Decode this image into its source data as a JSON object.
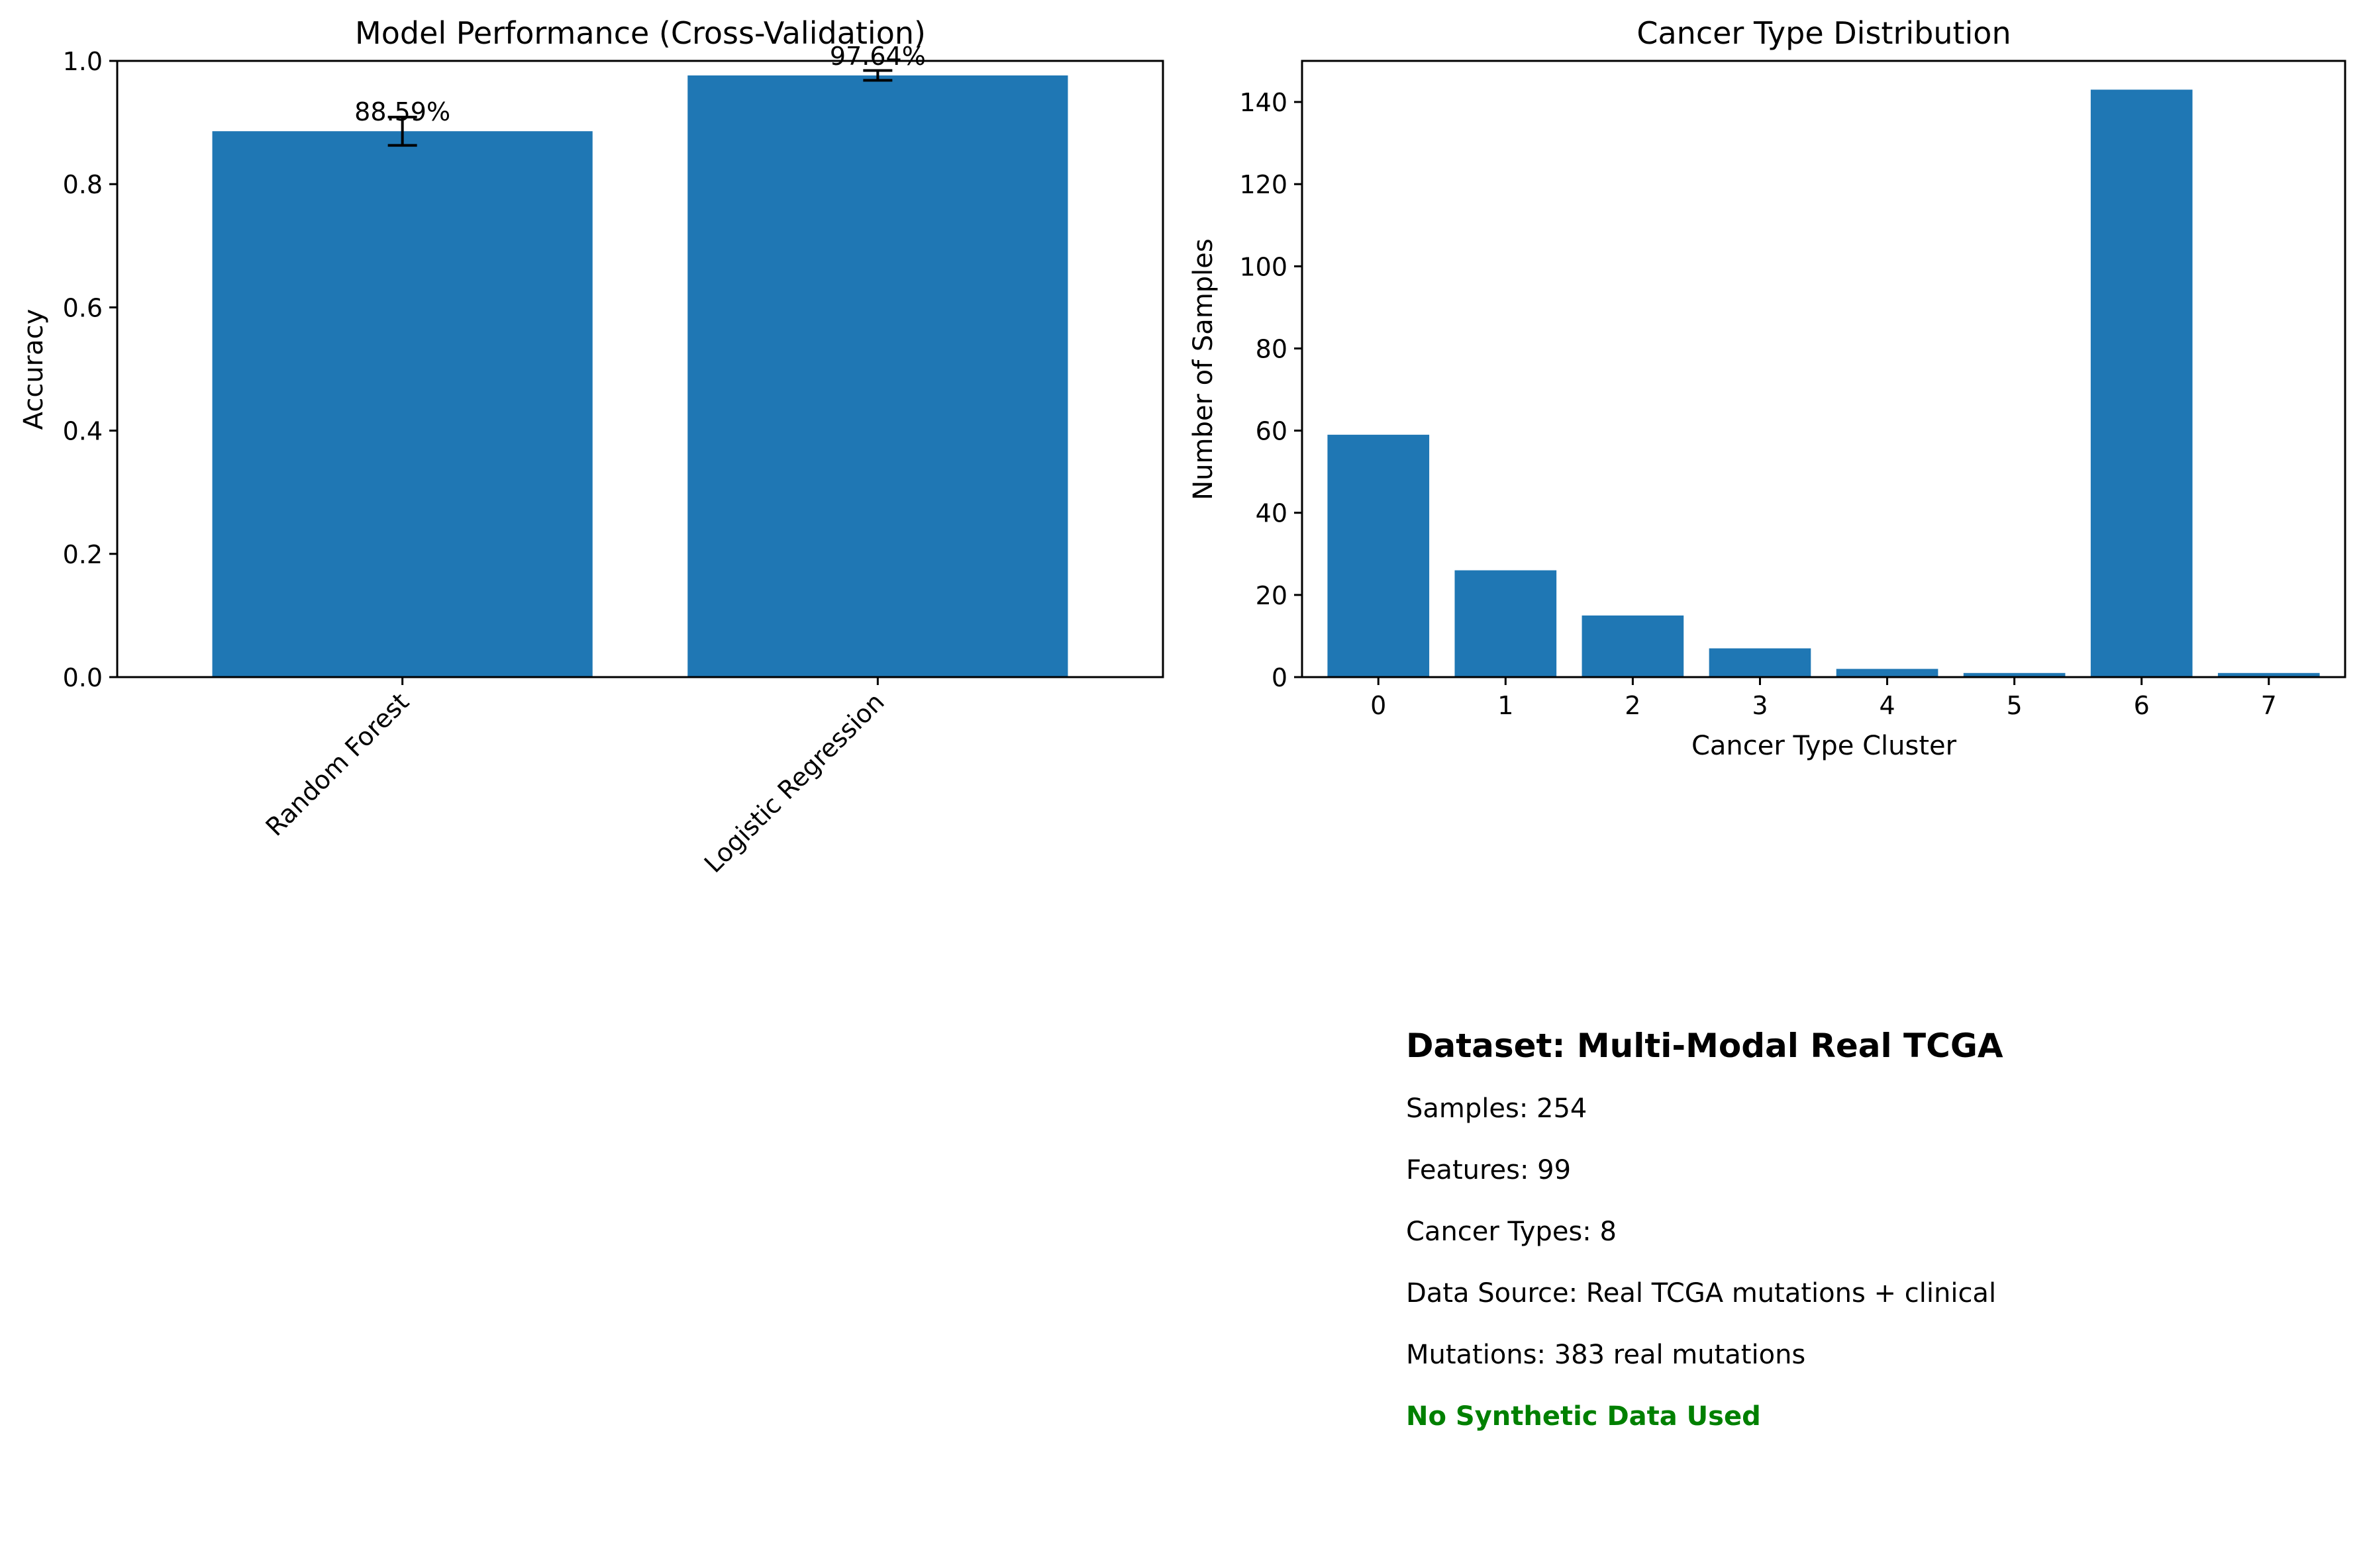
{
  "colors": {
    "bar": "#1f77b4",
    "axis": "#000000",
    "error_bar": "#000000",
    "highlight": "#008000",
    "background": "#ffffff"
  },
  "chart_data": [
    {
      "type": "bar",
      "title": "Model Performance (Cross-Validation)",
      "xlabel": "",
      "ylabel": "Accuracy",
      "categories": [
        "Random Forest",
        "Logistic Regression"
      ],
      "values": [
        0.8859,
        0.9764
      ],
      "errors": [
        0.023,
        0.008
      ],
      "data_labels": [
        "88.59%",
        "97.64%"
      ],
      "ylim": [
        0,
        1.0
      ],
      "yticks": [
        0.0,
        0.2,
        0.4,
        0.6,
        0.8,
        1.0
      ],
      "ytick_labels": [
        "0.0",
        "0.2",
        "0.4",
        "0.6",
        "0.8",
        "1.0"
      ],
      "xtick_rotation": 45,
      "grid": false,
      "legend": "none"
    },
    {
      "type": "bar",
      "title": "Cancer Type Distribution",
      "xlabel": "Cancer Type Cluster",
      "ylabel": "Number of Samples",
      "categories": [
        "0",
        "1",
        "2",
        "3",
        "4",
        "5",
        "6",
        "7"
      ],
      "values": [
        59,
        26,
        15,
        7,
        2,
        1,
        143,
        1
      ],
      "ylim": [
        0,
        150
      ],
      "yticks": [
        0,
        20,
        40,
        60,
        80,
        100,
        120,
        140
      ],
      "ytick_labels": [
        "0",
        "20",
        "40",
        "60",
        "80",
        "100",
        "120",
        "140"
      ],
      "grid": false,
      "legend": "none"
    }
  ],
  "info": {
    "title": "Dataset: Multi-Modal Real TCGA",
    "lines": [
      "Samples: 254",
      "Features: 99",
      "Cancer Types: 8",
      "Data Source: Real TCGA mutations + clinical",
      "Mutations: 383 real mutations"
    ],
    "highlight": "No Synthetic Data Used"
  }
}
